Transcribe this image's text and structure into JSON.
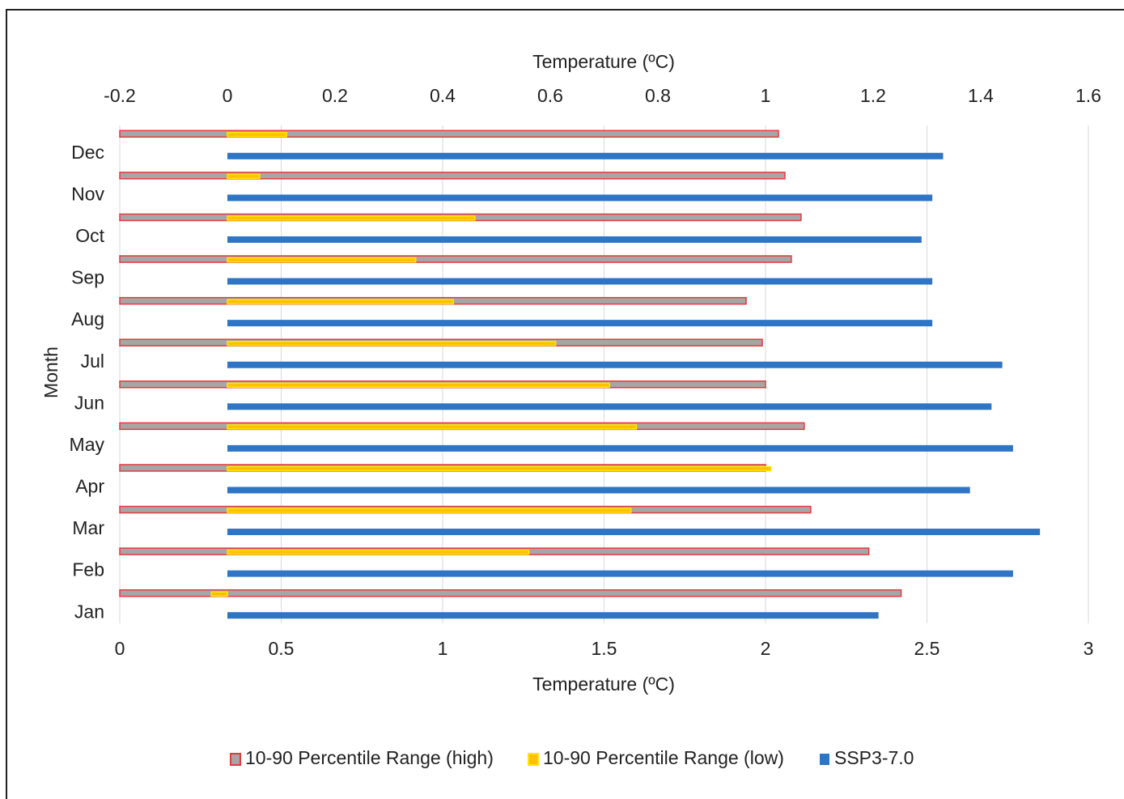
{
  "chart_data": {
    "type": "bar",
    "orientation": "horizontal",
    "xlabel": "Temperature (ºC)",
    "x2label": "Temperature (ºC)",
    "ylabel": "Month",
    "categories": [
      "Jan",
      "Feb",
      "Mar",
      "Apr",
      "May",
      "Jun",
      "Jul",
      "Aug",
      "Sep",
      "Oct",
      "Nov",
      "Dec"
    ],
    "series": [
      {
        "name": "10-90 Percentile Range (high)",
        "color": "#a6a6a6",
        "edgecolor": "#e8383d",
        "axis": "x",
        "values": [
          2.42,
          2.32,
          2.14,
          2.0,
          2.12,
          2.0,
          1.99,
          1.94,
          2.08,
          2.11,
          2.06,
          2.04
        ]
      },
      {
        "name": "10-90 Percentile Range (low)",
        "color": "#ffc000",
        "edgecolor": "#ffe600",
        "axis": "x2",
        "values": [
          -0.03,
          0.56,
          0.75,
          1.01,
          0.76,
          0.71,
          0.61,
          0.42,
          0.35,
          0.46,
          0.06,
          0.11
        ]
      },
      {
        "name": "SSP3-7.0",
        "color": "#2e75c6",
        "axis": "x2",
        "values": [
          1.21,
          1.46,
          1.51,
          1.38,
          1.46,
          1.42,
          1.44,
          1.31,
          1.31,
          1.29,
          1.31,
          1.33
        ]
      }
    ],
    "xlim": [
      0,
      3
    ],
    "xticks": [
      0,
      0.5,
      1,
      1.5,
      2,
      2.5,
      3
    ],
    "x2lim": [
      -0.2,
      1.6
    ],
    "x2ticks": [
      -0.2,
      0,
      0.2,
      0.4,
      0.6,
      0.8,
      1,
      1.2,
      1.4,
      1.6
    ],
    "grid": true,
    "legend": "bottom"
  }
}
